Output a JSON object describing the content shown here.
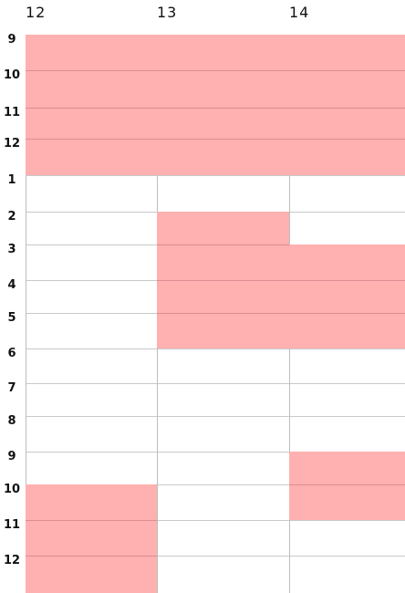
{
  "calendar": {
    "days": [
      "12",
      "13",
      "14"
    ],
    "hours": [
      "9",
      "10",
      "11",
      "12",
      "1",
      "2",
      "3",
      "4",
      "5",
      "6",
      "7",
      "8",
      "9",
      "10",
      "11",
      "12"
    ],
    "busy_color": "#ffb0b0",
    "busy_slots": [
      {
        "day": 0,
        "start": 0,
        "end": 4
      },
      {
        "day": 1,
        "start": 0,
        "end": 4
      },
      {
        "day": 2,
        "start": 0,
        "end": 4
      },
      {
        "day": 1,
        "start": 5,
        "end": 9
      },
      {
        "day": 2,
        "start": 6,
        "end": 9
      },
      {
        "day": 2,
        "start": 12,
        "end": 14
      },
      {
        "day": 0,
        "start": 13,
        "end": 16
      }
    ]
  }
}
